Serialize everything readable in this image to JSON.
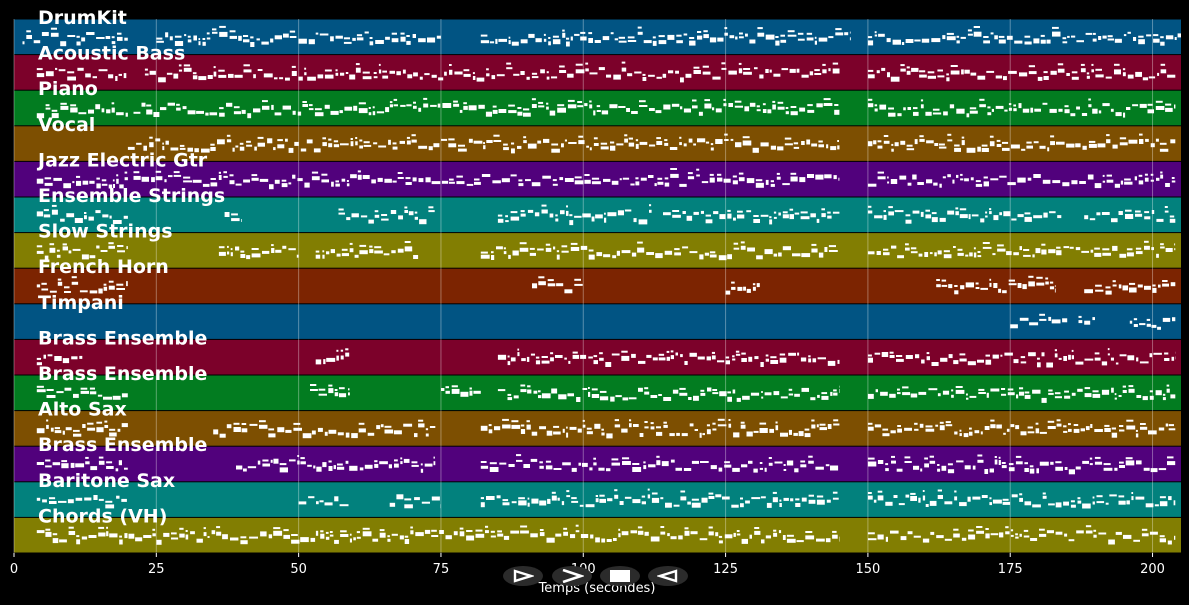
{
  "chart_data": {
    "type": "piano-roll",
    "xlabel": "Temps (secondes)",
    "xlim": [
      0,
      205
    ],
    "xticks": [
      0,
      25,
      50,
      75,
      100,
      125,
      150,
      175,
      200
    ],
    "tracks": [
      {
        "name": "DrumKit",
        "color": "#015483",
        "segments": [
          [
            1.5,
            20
          ],
          [
            25,
            75
          ],
          [
            82,
            147
          ],
          [
            150,
            185
          ],
          [
            185,
            205
          ]
        ]
      },
      {
        "name": "Acoustic Bass",
        "color": "#7c012a",
        "segments": [
          [
            4,
            20
          ],
          [
            23,
            145
          ],
          [
            150,
            204
          ]
        ]
      },
      {
        "name": "Piano",
        "color": "#027c20",
        "segments": [
          [
            4,
            20
          ],
          [
            21,
            145
          ],
          [
            150,
            204
          ]
        ]
      },
      {
        "name": "Vocal",
        "color": "#7d4f01",
        "segments": [
          [
            20,
            145
          ],
          [
            150,
            204
          ]
        ]
      },
      {
        "name": "Jazz Electric Gtr",
        "color": "#51017c",
        "segments": [
          [
            4,
            20
          ],
          [
            21,
            145
          ],
          [
            150,
            204
          ]
        ]
      },
      {
        "name": "Ensemble Strings",
        "color": "#02817d",
        "segments": [
          [
            4,
            20
          ],
          [
            37,
            40
          ],
          [
            57,
            74
          ],
          [
            85,
            112
          ],
          [
            114,
            145
          ],
          [
            150,
            184
          ],
          [
            188,
            204
          ]
        ]
      },
      {
        "name": "Slow Strings",
        "color": "#827e02",
        "segments": [
          [
            4,
            20
          ],
          [
            36,
            50
          ],
          [
            53,
            71
          ],
          [
            82,
            145
          ],
          [
            150,
            204
          ]
        ]
      },
      {
        "name": "French Horn",
        "color": "#7c2401",
        "segments": [
          [
            4,
            20
          ],
          [
            91,
            100
          ],
          [
            125,
            131
          ],
          [
            162,
            183
          ],
          [
            188,
            204
          ]
        ]
      },
      {
        "name": "Timpani",
        "color": "#015483",
        "segments": [
          [
            175,
            185
          ],
          [
            187,
            190
          ],
          [
            196,
            204
          ]
        ]
      },
      {
        "name": "Brass Ensemble",
        "color": "#7c012a",
        "segments": [
          [
            4,
            12
          ],
          [
            53,
            59
          ],
          [
            85,
            145
          ],
          [
            150,
            204
          ]
        ]
      },
      {
        "name": "Brass Ensemble",
        "color": "#027c20",
        "segments": [
          [
            4,
            20
          ],
          [
            52,
            59
          ],
          [
            75,
            82
          ],
          [
            85,
            145
          ],
          [
            150,
            204
          ]
        ]
      },
      {
        "name": "Alto Sax",
        "color": "#7d4f01",
        "segments": [
          [
            4,
            20
          ],
          [
            35,
            74
          ],
          [
            82,
            145
          ],
          [
            150,
            204
          ]
        ]
      },
      {
        "name": "Brass Ensemble",
        "color": "#51017c",
        "segments": [
          [
            4,
            20
          ],
          [
            39,
            74
          ],
          [
            82,
            145
          ],
          [
            150,
            204
          ]
        ]
      },
      {
        "name": "Baritone Sax",
        "color": "#02817d",
        "segments": [
          [
            4,
            20
          ],
          [
            50,
            59
          ],
          [
            66,
            75
          ],
          [
            82,
            145
          ],
          [
            150,
            204
          ]
        ]
      },
      {
        "name": "Chords (VH)",
        "color": "#827e02",
        "segments": [
          [
            4,
            145
          ],
          [
            150,
            204
          ]
        ]
      }
    ]
  },
  "controls": [
    {
      "name": "play",
      "icon": "play-icon"
    },
    {
      "name": "forward",
      "icon": "forward-icon"
    },
    {
      "name": "stop",
      "icon": "stop-icon"
    },
    {
      "name": "rewind",
      "icon": "rewind-icon"
    }
  ]
}
